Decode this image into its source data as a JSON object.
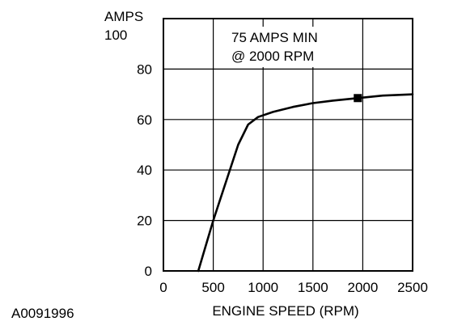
{
  "figure_id": "A0091996",
  "chart_data": {
    "type": "line",
    "title": "",
    "xlabel": "ENGINE SPEED (RPM)",
    "ylabel": "AMPS",
    "xlim": [
      0,
      2500
    ],
    "ylim": [
      0,
      100
    ],
    "x_ticks": [
      0,
      500,
      1000,
      1500,
      2000,
      2500
    ],
    "y_ticks": [
      0,
      20,
      40,
      60,
      80,
      100
    ],
    "grid": true,
    "annotation": [
      "75 AMPS MIN",
      "@ 2000 RPM"
    ],
    "series": [
      {
        "x": [
          350,
          500,
          650,
          750,
          850,
          950,
          1100,
          1300,
          1500,
          1700,
          1950,
          2200,
          2500
        ],
        "y": [
          0,
          20,
          38,
          50,
          58,
          61,
          63,
          65,
          66.5,
          67.5,
          68.5,
          69.5,
          70
        ]
      }
    ],
    "marker": {
      "x": 1950,
      "y": 68.5,
      "shape": "square"
    }
  }
}
